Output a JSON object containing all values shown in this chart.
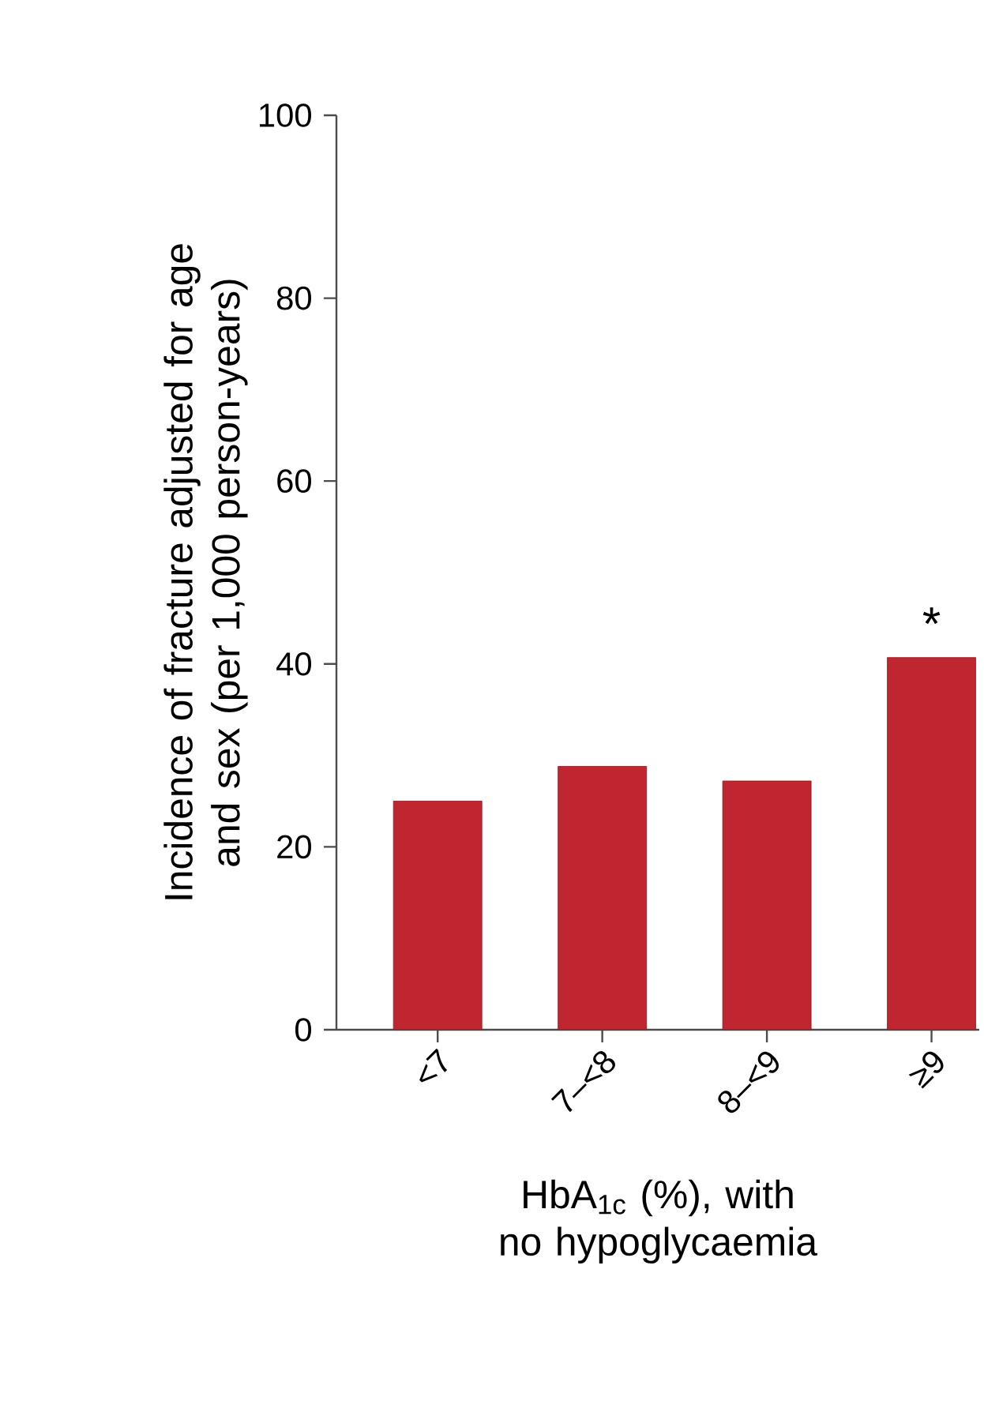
{
  "chart_data": {
    "type": "bar",
    "xlabel": "HbA$_{1c}$ (%), with no hypoglycaemia",
    "ylabel": "Incidence of fracture adjusted for age and sex (per 1,000 person-years)",
    "categories": [
      "<7",
      "7–<8",
      "8–<9",
      "≥9"
    ],
    "values": [
      25.0,
      28.8,
      27.2,
      40.7
    ],
    "color": "#c0262f",
    "ylim": [
      0,
      100
    ],
    "yticks": [
      0,
      20,
      40,
      60,
      80,
      100
    ],
    "grid": false,
    "annotations": [
      "*"
    ]
  }
}
